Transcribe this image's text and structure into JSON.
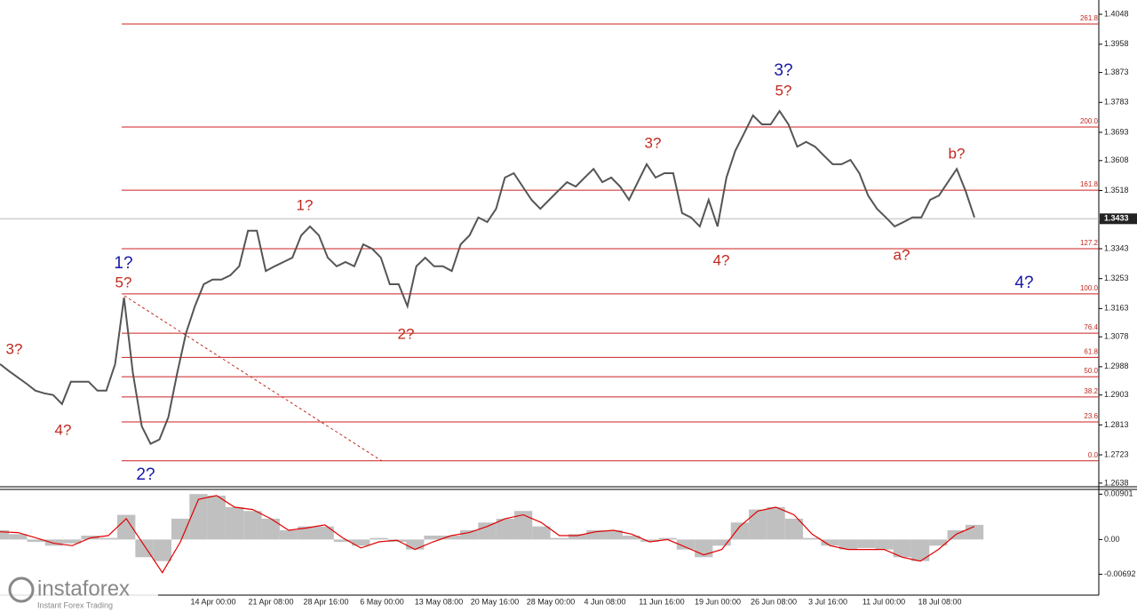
{
  "chart_data": [
    {
      "type": "line",
      "values": [
        1.2996,
        1.2975,
        1.2956,
        1.2937,
        1.2916,
        1.2908,
        1.2903,
        1.2876,
        1.2943,
        1.2943,
        1.2943,
        1.2916,
        1.2916,
        1.2996,
        1.3196,
        1.2969,
        1.2809,
        1.2756,
        1.2769,
        1.2836,
        1.2969,
        1.3089,
        1.317,
        1.3236,
        1.325,
        1.325,
        1.3263,
        1.329,
        1.3397,
        1.3397,
        1.3276,
        1.329,
        1.3303,
        1.3316,
        1.3383,
        1.341,
        1.3383,
        1.3316,
        1.329,
        1.3303,
        1.329,
        1.3356,
        1.3343,
        1.3316,
        1.3236,
        1.3236,
        1.317,
        1.329,
        1.3316,
        1.329,
        1.329,
        1.3276,
        1.3356,
        1.3383,
        1.3437,
        1.3423,
        1.3463,
        1.3557,
        1.357,
        1.353,
        1.349,
        1.3463,
        1.349,
        1.3517,
        1.3543,
        1.353,
        1.3557,
        1.3583,
        1.3543,
        1.3557,
        1.353,
        1.349,
        1.3543,
        1.3597,
        1.3557,
        1.357,
        1.357,
        1.345,
        1.3437,
        1.341,
        1.349,
        1.341,
        1.3557,
        1.3637,
        1.369,
        1.3744,
        1.3717,
        1.3717,
        1.3757,
        1.3717,
        1.365,
        1.3664,
        1.365,
        1.3623,
        1.3597,
        1.3597,
        1.361,
        1.357,
        1.3503,
        1.3463,
        1.3437,
        1.341,
        1.3423,
        1.3437,
        1.3437,
        1.349,
        1.3503,
        1.3543,
        1.3583,
        1.3517,
        1.3437
      ],
      "color": "#555555",
      "ylim": [
        1.2627,
        1.4091
      ],
      "yticks": [
        1.4048,
        1.3958,
        1.3873,
        1.3783,
        1.3693,
        1.3608,
        1.3518,
        1.3343,
        1.3253,
        1.3163,
        1.3078,
        1.2988,
        1.2903,
        1.2813,
        1.2723,
        1.2638
      ],
      "last_price": 1.3433,
      "fib_color": "#cc2222",
      "fib_levels": [
        {
          "label": "261.8",
          "price": 1.4019
        },
        {
          "label": "200.0",
          "price": 1.3709
        },
        {
          "label": "161.8",
          "price": 1.3519
        },
        {
          "label": "127.2",
          "price": 1.3343
        },
        {
          "label": "100.0",
          "price": 1.3207
        },
        {
          "label": "76.4",
          "price": 1.3089
        },
        {
          "label": "61.8",
          "price": 1.3016
        },
        {
          "label": "50.0",
          "price": 1.2958
        },
        {
          "label": "38.2",
          "price": 1.2897
        },
        {
          "label": "23.6",
          "price": 1.2822
        },
        {
          "label": "0.0",
          "price": 1.2705
        }
      ],
      "x_labels": [
        "14 Apr 00:00",
        "21 Apr 08:00",
        "28 Apr 16:00",
        "6 May 00:00",
        "13 May 08:00",
        "20 May 16:00",
        "28 May 00:00",
        "4 Jun 08:00",
        "11 Jun 16:00",
        "19 Jun 00:00",
        "26 Jun 08:00",
        "3 Jul 16:00",
        "11 Jul 00:00",
        "18 Jul 08:00"
      ]
    },
    {
      "type": "macd",
      "histogram": [
        0.00184,
        0.00107,
        -0.00046,
        -0.00123,
        -0.00077,
        0.00077,
        0.00031,
        0.0049,
        -0.00352,
        -0.00429,
        0.00414,
        0.00904,
        0.00873,
        0.00643,
        0.00567,
        0.00414,
        0.00184,
        0.0026,
        0.0026,
        -0.00046,
        -0.00123,
        0.00031,
        -0.00046,
        -0.00199,
        0.00077,
        0.00077,
        0.00184,
        0.00337,
        0.00414,
        0.00567,
        0.0026,
        0.00031,
        0.00107,
        0.00184,
        0.00184,
        0.00077,
        -0.00046,
        0.00031,
        -0.00199,
        -0.00352,
        -0.00123,
        0.00337,
        0.00597,
        0.00643,
        0.00414,
        0.00031,
        -0.00123,
        -0.00199,
        -0.00169,
        -0.00199,
        -0.00352,
        -0.00429,
        -0.00123,
        0.00184,
        0.00291
      ],
      "signal": [
        0.00153,
        0.00138,
        0.00031,
        -0.00077,
        -0.00123,
        0.00031,
        0.00077,
        0.00414,
        -0.00123,
        -0.00659,
        -0.00046,
        0.00797,
        0.00873,
        0.00643,
        0.00597,
        0.00414,
        0.00184,
        0.0023,
        0.00291,
        0.00031,
        -0.00169,
        -0.00046,
        -0.00015,
        -0.00199,
        -0.00046,
        0.00077,
        0.00138,
        0.0026,
        0.00414,
        0.0049,
        0.00337,
        0.00077,
        0.00077,
        0.00153,
        0.00184,
        0.00107,
        -0.00046,
        0,
        -0.00153,
        -0.00306,
        -0.00199,
        0.0026,
        0.00567,
        0.00643,
        0.0049,
        0.00107,
        -0.00123,
        -0.00199,
        -0.00199,
        -0.00199,
        -0.00352,
        -0.00429,
        -0.00199,
        0.00107,
        0.0026
      ],
      "histogram_color": "#c0c0c0",
      "signal_color": "#e00000",
      "ylim": [
        -0.01106,
        0.00978
      ],
      "yticks": [
        0.00901,
        {
          "value": 0,
          "label": "0.00"
        },
        -0.00692
      ]
    }
  ],
  "annotations": [
    "3?",
    "4?",
    "1?",
    "5?",
    "2?",
    "1?",
    "2?",
    "3?",
    "4?",
    "3?",
    "5?",
    "a?",
    "b?",
    "4?"
  ],
  "branding": {
    "name": "instaforex",
    "tagline": "Instant Forex Trading"
  }
}
